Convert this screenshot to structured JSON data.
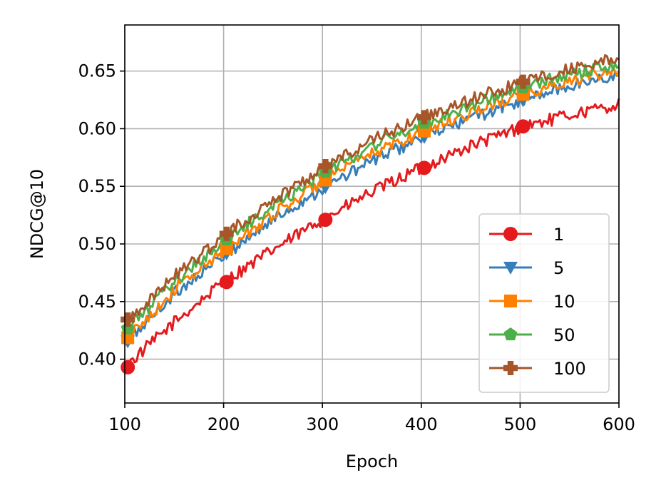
{
  "chart_data": {
    "type": "line",
    "title": "",
    "xlabel": "Epoch",
    "ylabel": "NDCG@10",
    "xlim": [
      100,
      600
    ],
    "ylim": [
      0.362,
      0.69
    ],
    "xticks": [
      100,
      200,
      300,
      400,
      500,
      600
    ],
    "xtick_labels": [
      "100",
      "200",
      "300",
      "400",
      "500",
      "600"
    ],
    "yticks": [
      0.4,
      0.45,
      0.5,
      0.55,
      0.6,
      0.65
    ],
    "ytick_labels": [
      "0.40",
      "0.45",
      "0.50",
      "0.55",
      "0.60",
      "0.65"
    ],
    "grid": true,
    "legend_position": "lower-right",
    "x": [
      100,
      150,
      200,
      250,
      300,
      350,
      400,
      450,
      500,
      550,
      600
    ],
    "series": [
      {
        "name": "1",
        "color": "#e41a1c",
        "marker": "circle",
        "values": [
          0.393,
          0.432,
          0.467,
          0.495,
          0.521,
          0.545,
          0.566,
          0.585,
          0.601,
          0.612,
          0.621
        ],
        "marker_x": [
          103,
          203,
          303,
          403,
          503
        ],
        "marker_y": [
          0.393,
          0.467,
          0.521,
          0.566,
          0.602
        ]
      },
      {
        "name": "5",
        "color": "#377eb8",
        "marker": "triangle-down",
        "values": [
          0.413,
          0.457,
          0.49,
          0.521,
          0.548,
          0.572,
          0.592,
          0.609,
          0.624,
          0.637,
          0.647
        ]
      },
      {
        "name": "10",
        "color": "#ff7f00",
        "marker": "square",
        "values": [
          0.416,
          0.46,
          0.494,
          0.526,
          0.554,
          0.578,
          0.597,
          0.614,
          0.629,
          0.641,
          0.651
        ]
      },
      {
        "name": "50",
        "color": "#4daf4a",
        "marker": "pentagon",
        "values": [
          0.424,
          0.467,
          0.502,
          0.533,
          0.561,
          0.585,
          0.604,
          0.62,
          0.635,
          0.647,
          0.657
        ]
      },
      {
        "name": "100",
        "color": "#a65628",
        "marker": "plus-filled",
        "values": [
          0.432,
          0.472,
          0.507,
          0.538,
          0.566,
          0.59,
          0.609,
          0.625,
          0.64,
          0.652,
          0.661
        ]
      }
    ]
  }
}
